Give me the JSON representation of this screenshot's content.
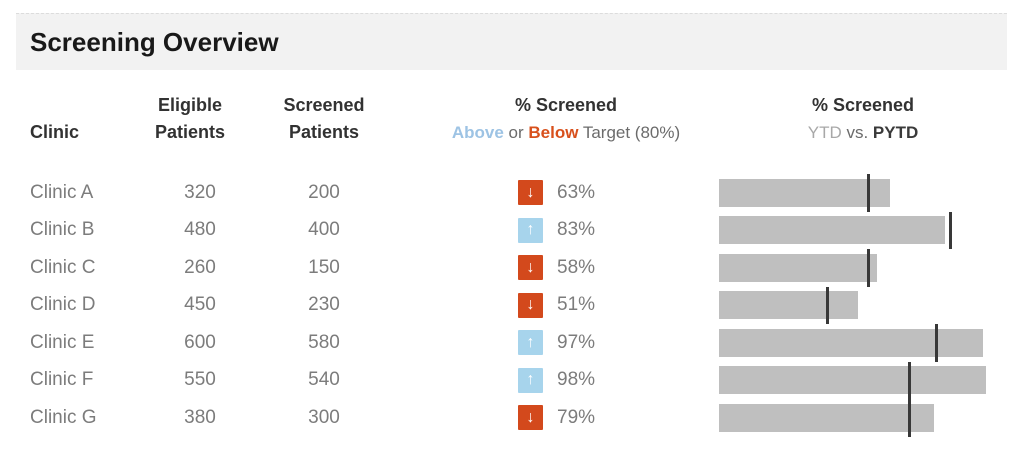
{
  "title_bar": {
    "title": "Screening Overview"
  },
  "table": {
    "headers": {
      "clinic": "Clinic",
      "eligible_line1": "Eligible",
      "eligible_line2": "Patients",
      "screened_line1": "Screened",
      "screened_line2": "Patients",
      "pct_line1": "% Screened",
      "pct_above": "Above",
      "pct_or": " or ",
      "pct_below": "Below",
      "pct_target": " Target (80%)",
      "trend_line1": "% Screened",
      "trend_ytd": "YTD",
      "trend_vs": " vs. ",
      "trend_pytd": "PYTD"
    },
    "rows": [
      {
        "clinic": "Clinic A",
        "eligible": "320",
        "screened": "200",
        "pct": "63%",
        "direction": "below",
        "ytd": 63,
        "pytd": 55
      },
      {
        "clinic": "Clinic B",
        "eligible": "480",
        "screened": "400",
        "pct": "83%",
        "direction": "above",
        "ytd": 83,
        "pytd": 85
      },
      {
        "clinic": "Clinic C",
        "eligible": "260",
        "screened": "150",
        "pct": "58%",
        "direction": "below",
        "ytd": 58,
        "pytd": 55
      },
      {
        "clinic": "Clinic D",
        "eligible": "450",
        "screened": "230",
        "pct": "51%",
        "direction": "below",
        "ytd": 51,
        "pytd": 40
      },
      {
        "clinic": "Clinic E",
        "eligible": "600",
        "screened": "580",
        "pct": "97%",
        "direction": "above",
        "ytd": 97,
        "pytd": 80
      },
      {
        "clinic": "Clinic F",
        "eligible": "550",
        "screened": "540",
        "pct": "98%",
        "direction": "above",
        "ytd": 98,
        "pytd": 70
      },
      {
        "clinic": "Clinic G",
        "eligible": "380",
        "screened": "300",
        "pct": "79%",
        "direction": "below",
        "ytd": 79,
        "pytd": 70
      }
    ],
    "target_pct": 80
  },
  "icons": {
    "up_arrow": "↑",
    "down_arrow": "↓"
  },
  "colors": {
    "above_blue_text": "#9dc3e4",
    "below_orange_text": "#d8501c",
    "above_badge": "#a7d4ec",
    "below_badge": "#d3491c",
    "bar_gray": "#bfbfbf",
    "tick_dark": "#383838",
    "title_band_bg": "#f2f2f2"
  },
  "chart_data": {
    "type": "bar",
    "orientation": "horizontal",
    "title": "Screening Overview",
    "categories": [
      "Clinic A",
      "Clinic B",
      "Clinic C",
      "Clinic D",
      "Clinic E",
      "Clinic F",
      "Clinic G"
    ],
    "series": [
      {
        "name": "Eligible Patients",
        "values": [
          320,
          480,
          260,
          450,
          600,
          550,
          380
        ]
      },
      {
        "name": "Screened Patients",
        "values": [
          200,
          400,
          150,
          230,
          580,
          540,
          300
        ]
      },
      {
        "name": "% Screened YTD (gray bar)",
        "values": [
          63,
          83,
          58,
          51,
          97,
          98,
          79
        ]
      },
      {
        "name": "% Screened PYTD (reference tick)",
        "values": [
          55,
          85,
          55,
          40,
          80,
          70,
          70
        ]
      }
    ],
    "target_pct": 80,
    "xlabel": "% Screened",
    "xlim": [
      0,
      100
    ],
    "grid": false,
    "legend_position": "none"
  }
}
